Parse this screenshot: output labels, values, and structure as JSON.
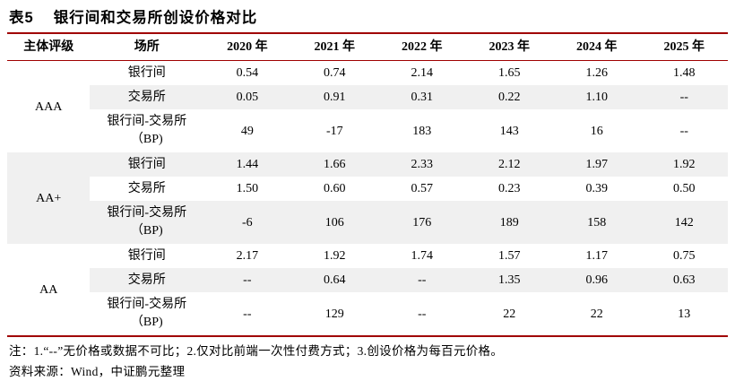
{
  "title": {
    "prefix": "表5",
    "text": "银行间和交易所创设价格对比"
  },
  "table": {
    "headers": [
      "主体评级",
      "场所",
      "2020 年",
      "2021 年",
      "2022 年",
      "2023 年",
      "2024 年",
      "2025 年"
    ],
    "groups": [
      {
        "rating": "AAA",
        "rows": [
          {
            "venue": "银行间",
            "values": [
              "0.54",
              "0.74",
              "2.14",
              "1.65",
              "1.26",
              "1.48"
            ]
          },
          {
            "venue": "交易所",
            "values": [
              "0.05",
              "0.91",
              "0.31",
              "0.22",
              "1.10",
              "--"
            ]
          },
          {
            "venue_line1": "银行间-交易所",
            "venue_line2": "（BP)",
            "values": [
              "49",
              "-17",
              "183",
              "143",
              "16",
              "--"
            ]
          }
        ]
      },
      {
        "rating": "AA+",
        "rows": [
          {
            "venue": "银行间",
            "values": [
              "1.44",
              "1.66",
              "2.33",
              "2.12",
              "1.97",
              "1.92"
            ]
          },
          {
            "venue": "交易所",
            "values": [
              "1.50",
              "0.60",
              "0.57",
              "0.23",
              "0.39",
              "0.50"
            ]
          },
          {
            "venue_line1": "银行间-交易所",
            "venue_line2": "（BP)",
            "values": [
              "-6",
              "106",
              "176",
              "189",
              "158",
              "142"
            ]
          }
        ]
      },
      {
        "rating": "AA",
        "rows": [
          {
            "venue": "银行间",
            "values": [
              "2.17",
              "1.92",
              "1.74",
              "1.57",
              "1.17",
              "0.75"
            ]
          },
          {
            "venue": "交易所",
            "values": [
              "--",
              "0.64",
              "--",
              "1.35",
              "0.96",
              "0.63"
            ]
          },
          {
            "venue_line1": "银行间-交易所",
            "venue_line2": "（BP)",
            "values": [
              "--",
              "129",
              "--",
              "22",
              "22",
              "13"
            ]
          }
        ]
      }
    ]
  },
  "notes": {
    "note": "注：1.“--”无价格或数据不可比；2.仅对比前端一次性付费方式；3.创设价格为每百元价格。",
    "source": "资料来源：Wind，中证鹏元整理"
  },
  "colors": {
    "accent_line": "#a00000",
    "row_stripe": "#f0f0f0",
    "text": "#000000"
  }
}
